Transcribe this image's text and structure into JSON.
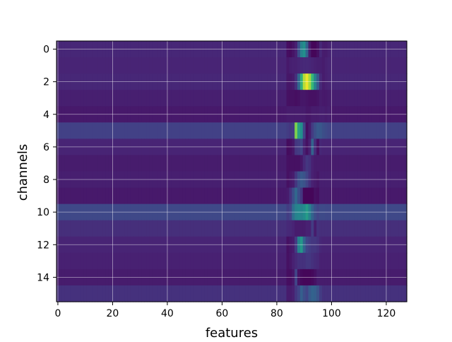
{
  "chart_data": {
    "type": "heatmap",
    "title": "",
    "xlabel": "features",
    "ylabel": "channels",
    "n_rows": 16,
    "n_cols": 128,
    "xlim": [
      -0.5,
      127.5
    ],
    "ylim": [
      15.5,
      -0.5
    ],
    "x_ticks": [
      0,
      20,
      40,
      60,
      80,
      100,
      120
    ],
    "y_ticks": [
      0,
      2,
      4,
      6,
      8,
      10,
      12,
      14
    ],
    "grid": true,
    "colormap": "viridis",
    "value_range": [
      0,
      1
    ],
    "row_baseline": [
      0.14,
      0.13,
      0.14,
      0.11,
      0.09,
      0.24,
      0.13,
      0.1,
      0.11,
      0.09,
      0.27,
      0.17,
      0.13,
      0.12,
      0.1,
      0.18
    ],
    "features_band": [
      {
        "row": 0,
        "values": [
          0.05,
          0.04,
          0.07,
          0.12,
          0.3,
          0.55,
          0.62,
          0.4,
          0.1,
          0.02,
          0.02,
          0.06,
          0.14,
          0.1,
          0.1,
          0.12
        ]
      },
      {
        "row": 1,
        "values": [
          0.09,
          0.11,
          0.12,
          0.12,
          0.13,
          0.14,
          0.15,
          0.15,
          0.14,
          0.13,
          0.12,
          0.11,
          0.11,
          0.1,
          0.12,
          0.13
        ]
      },
      {
        "row": 2,
        "values": [
          0.08,
          0.08,
          0.1,
          0.18,
          0.42,
          0.72,
          0.92,
          0.98,
          0.9,
          0.75,
          0.55,
          0.35,
          0.15,
          0.1,
          0.12,
          0.13
        ]
      },
      {
        "row": 3,
        "values": [
          0.06,
          0.06,
          0.06,
          0.05,
          0.06,
          0.08,
          0.08,
          0.07,
          0.06,
          0.06,
          0.06,
          0.07,
          0.1,
          0.09,
          0.09,
          0.1
        ]
      },
      {
        "row": 4,
        "values": [
          0.1,
          0.1,
          0.1,
          0.1,
          0.1,
          0.1,
          0.1,
          0.08,
          0.08,
          0.1,
          0.1,
          0.1,
          0.11,
          0.11,
          0.1,
          0.11
        ]
      },
      {
        "row": 5,
        "values": [
          0.22,
          0.2,
          0.22,
          0.85,
          0.68,
          0.62,
          0.25,
          0.05,
          0.1,
          0.22,
          0.3,
          0.35,
          0.34,
          0.3,
          0.28,
          0.26
        ]
      },
      {
        "row": 6,
        "values": [
          0.04,
          0.05,
          0.08,
          0.2,
          0.22,
          0.25,
          0.12,
          0.06,
          0.12,
          0.4,
          0.16,
          0.05,
          0.14,
          0.13,
          0.13,
          0.13
        ]
      },
      {
        "row": 7,
        "values": [
          0.06,
          0.06,
          0.06,
          0.06,
          0.06,
          0.08,
          0.15,
          0.2,
          0.18,
          0.12,
          0.1,
          0.1,
          0.1,
          0.1,
          0.1,
          0.1
        ]
      },
      {
        "row": 8,
        "values": [
          0.06,
          0.08,
          0.1,
          0.2,
          0.3,
          0.35,
          0.32,
          0.25,
          0.18,
          0.12,
          0.1,
          0.08,
          0.11,
          0.11,
          0.11,
          0.11
        ]
      },
      {
        "row": 9,
        "values": [
          0.1,
          0.18,
          0.3,
          0.42,
          0.3,
          0.2,
          0.02,
          0.02,
          0.02,
          0.02,
          0.06,
          0.05,
          0.1,
          0.1,
          0.1,
          0.1
        ]
      },
      {
        "row": 10,
        "values": [
          0.22,
          0.25,
          0.45,
          0.55,
          0.58,
          0.55,
          0.6,
          0.66,
          0.55,
          0.4,
          0.3,
          0.25,
          0.28,
          0.28,
          0.27,
          0.27
        ]
      },
      {
        "row": 11,
        "values": [
          0.15,
          0.15,
          0.13,
          0.1,
          0.1,
          0.1,
          0.1,
          0.12,
          0.12,
          0.22,
          0.1,
          0.18,
          0.17,
          0.17,
          0.17,
          0.17
        ]
      },
      {
        "row": 12,
        "values": [
          0.06,
          0.08,
          0.1,
          0.22,
          0.55,
          0.65,
          0.4,
          0.25,
          0.22,
          0.2,
          0.2,
          0.18,
          0.14,
          0.13,
          0.13,
          0.13
        ]
      },
      {
        "row": 13,
        "values": [
          0.06,
          0.08,
          0.12,
          0.15,
          0.18,
          0.18,
          0.18,
          0.2,
          0.2,
          0.18,
          0.16,
          0.15,
          0.12,
          0.12,
          0.12,
          0.12
        ]
      },
      {
        "row": 14,
        "values": [
          0.05,
          0.05,
          0.08,
          0.25,
          0.06,
          0.03,
          0.02,
          0.02,
          0.02,
          0.03,
          0.06,
          0.1,
          0.1,
          0.1,
          0.1,
          0.1
        ]
      },
      {
        "row": 15,
        "values": [
          0.1,
          0.1,
          0.12,
          0.2,
          0.25,
          0.38,
          0.3,
          0.25,
          0.35,
          0.4,
          0.38,
          0.32,
          0.22,
          0.18,
          0.18,
          0.18
        ]
      }
    ],
    "features_band_start": 84
  }
}
